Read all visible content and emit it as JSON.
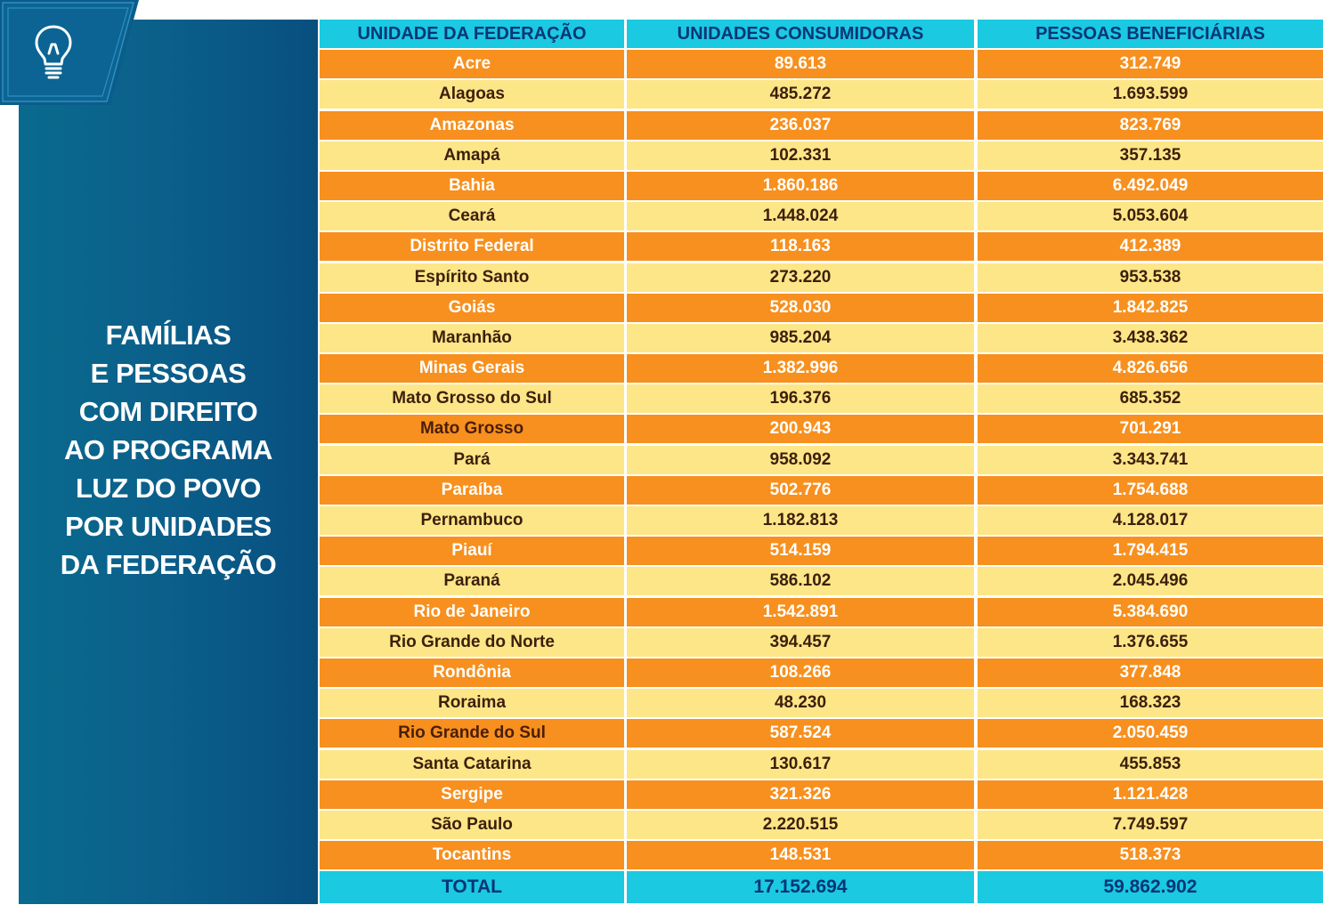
{
  "side_title_lines": [
    "FAMÍLIAS",
    "E PESSOAS",
    "COM DIREITO",
    "AO PROGRAMA",
    "LUZ DO POVO",
    "POR UNIDADES",
    "DA FEDERAÇÃO"
  ],
  "icon": "lightbulb-icon",
  "colors": {
    "panel_blue": "#0b5f8a",
    "header_cyan": "#1bc9e0",
    "row_orange": "#f7901e",
    "row_yellow": "#fce688"
  },
  "table": {
    "headers": [
      "UNIDADE DA FEDERAÇÃO",
      "UNIDADES CONSUMIDORAS",
      "PESSOAS BENEFICIÁRIAS"
    ],
    "rows": [
      [
        "Acre",
        "89.613",
        "312.749"
      ],
      [
        "Alagoas",
        "485.272",
        "1.693.599"
      ],
      [
        "Amazonas",
        "236.037",
        "823.769"
      ],
      [
        "Amapá",
        "102.331",
        "357.135"
      ],
      [
        "Bahia",
        "1.860.186",
        "6.492.049"
      ],
      [
        "Ceará",
        "1.448.024",
        "5.053.604"
      ],
      [
        "Distrito Federal",
        "118.163",
        "412.389"
      ],
      [
        "Espírito Santo",
        "273.220",
        "953.538"
      ],
      [
        "Goiás",
        "528.030",
        "1.842.825"
      ],
      [
        "Maranhão",
        "985.204",
        "3.438.362"
      ],
      [
        "Minas Gerais",
        "1.382.996",
        "4.826.656"
      ],
      [
        "Mato Grosso do Sul",
        "196.376",
        "685.352"
      ],
      [
        "Mato Grosso",
        "200.943",
        "701.291"
      ],
      [
        "Pará",
        "958.092",
        "3.343.741"
      ],
      [
        "Paraíba",
        "502.776",
        "1.754.688"
      ],
      [
        "Pernambuco",
        "1.182.813",
        "4.128.017"
      ],
      [
        "Piauí",
        "514.159",
        "1.794.415"
      ],
      [
        "Paraná",
        "586.102",
        "2.045.496"
      ],
      [
        "Rio de Janeiro",
        "1.542.891",
        "5.384.690"
      ],
      [
        "Rio Grande do Norte",
        "394.457",
        "1.376.655"
      ],
      [
        "Rondônia",
        "108.266",
        "377.848"
      ],
      [
        "Roraima",
        "48.230",
        "168.323"
      ],
      [
        "Rio Grande do Sul",
        "587.524",
        "2.050.459"
      ],
      [
        "Santa Catarina",
        "130.617",
        "455.853"
      ],
      [
        "Sergipe",
        "321.326",
        "1.121.428"
      ],
      [
        "São Paulo",
        "2.220.515",
        "7.749.597"
      ],
      [
        "Tocantins",
        "148.531",
        "518.373"
      ]
    ],
    "total": [
      "TOTAL",
      "17.152.694",
      "59.862.902"
    ]
  }
}
